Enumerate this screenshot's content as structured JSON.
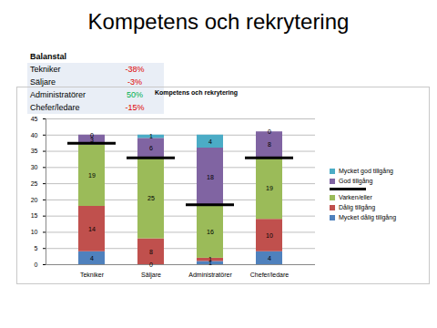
{
  "title": "Kompetens och rekrytering",
  "table": {
    "header": "Balanstal",
    "rows": [
      [
        "Tekniker",
        "-38%"
      ],
      [
        "Säljare",
        "-3%"
      ],
      [
        "Administratörer",
        "50%"
      ],
      [
        "Chefer/ledare",
        "-15%"
      ]
    ]
  },
  "chart_data": {
    "type": "bar",
    "title": "Kompetens och rekrytering",
    "stacked": true,
    "data_labels": true,
    "grid": true,
    "legend": "right",
    "categories": [
      "Tekniker",
      "Säljare",
      "Administratörer",
      "Chefer/ledare"
    ],
    "series": [
      {
        "name": "Mycket dålig tillgång",
        "color": "#4f81bd",
        "values": [
          4,
          0,
          1,
          4
        ]
      },
      {
        "name": "Dålig tillgång",
        "color": "#c0504d",
        "values": [
          14,
          8,
          1,
          10
        ]
      },
      {
        "name": "Varken/eller",
        "color": "#9bbb59",
        "values": [
          19,
          25,
          16,
          19
        ]
      },
      {
        "name": "God tillgång",
        "color": "#8064a2",
        "values": [
          3,
          6,
          18,
          8
        ]
      },
      {
        "name": "Mycket god tillgång",
        "color": "#4bacc6",
        "values": [
          0,
          1,
          4,
          0
        ]
      }
    ],
    "reference_lines": {
      "color": "#000000",
      "values": [
        37.5,
        33,
        18.5,
        33
      ]
    },
    "ylim": [
      0,
      45
    ],
    "yticks": [
      0,
      5,
      10,
      15,
      20,
      25,
      30,
      35,
      40,
      45
    ]
  }
}
